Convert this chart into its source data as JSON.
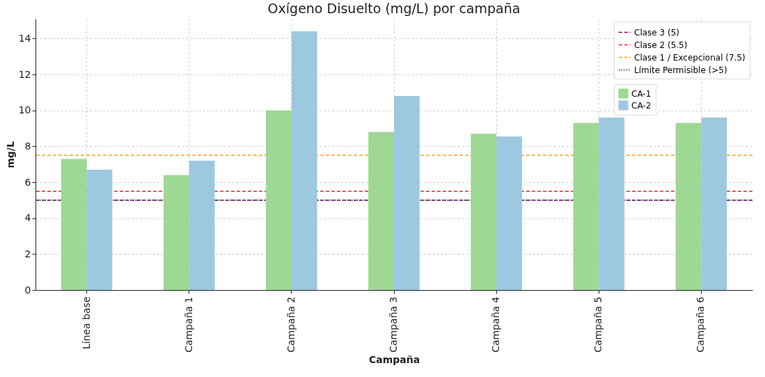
{
  "chart_data": {
    "type": "bar",
    "title": "Oxígeno Disuelto (mg/L) por campaña",
    "xlabel": "Campaña",
    "ylabel": "mg/L",
    "categories": [
      "Línea base",
      "Campaña 1",
      "Campaña 2",
      "Campaña 3",
      "Campaña 4",
      "Campaña 5",
      "Campaña 6"
    ],
    "series": [
      {
        "name": "CA-1",
        "color": "#9fd795",
        "values": [
          7.3,
          6.4,
          10.0,
          8.8,
          8.7,
          9.3,
          9.3
        ]
      },
      {
        "name": "CA-2",
        "color": "#9ec8e0",
        "values": [
          6.7,
          7.2,
          14.4,
          10.8,
          8.55,
          9.6,
          9.6
        ]
      }
    ],
    "ref_lines": [
      {
        "axis": "y",
        "value": 5,
        "label": "Clase 3 (5)",
        "color": "#800080",
        "line_style": "dashed"
      },
      {
        "axis": "y",
        "value": 5.5,
        "label": "Clase 2 (5.5)",
        "color": "#e0282e",
        "line_style": "dashed"
      },
      {
        "axis": "y",
        "value": 7.5,
        "label": "Clase 1 / Excepcional (7.5)",
        "color": "#f0a818",
        "line_style": "dashed"
      },
      {
        "axis": "y",
        "value": 5,
        "label": "Límite Permisible (>5)",
        "color": "#333333",
        "line_style": "dotted"
      }
    ],
    "ylim": [
      0,
      15.1
    ],
    "yticks": [
      0,
      2,
      4,
      6,
      8,
      10,
      12,
      14
    ],
    "grid": true,
    "legend": "top right"
  }
}
